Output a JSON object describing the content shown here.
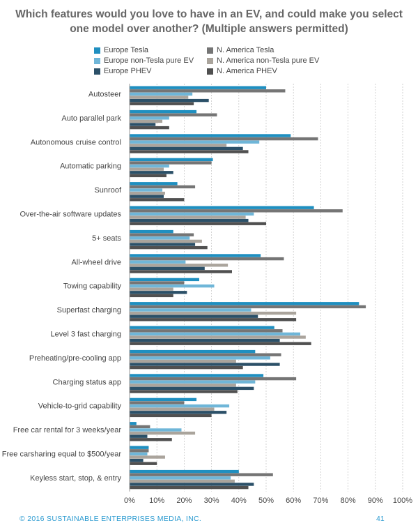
{
  "page": {
    "title_line1": "Which features would you love to have in an EV, and could make you select",
    "title_line2": "one model over another? (Multiple answers permitted)",
    "footer_left": "© 2016  SUSTAINABLE ENTERPRISES MEDIA, INC.",
    "footer_right": "41",
    "footer_color": "#2a9ad0"
  },
  "chart_data": {
    "type": "bar",
    "orientation": "horizontal",
    "title": "Which features would you love to have in an EV, and could make you select one model over another? (Multiple answers permitted)",
    "xlim": [
      0,
      100
    ],
    "x_ticks": [
      "0%",
      "10%",
      "20%",
      "30%",
      "40%",
      "50%",
      "60%",
      "70%",
      "80%",
      "90%",
      "100%"
    ],
    "grid": "vertical dashed",
    "legend_position": "top",
    "categories": [
      "Autosteer",
      "Auto parallel park",
      "Autonomous cruise control",
      "Automatic parking",
      "Sunroof",
      "Over-the-air software updates",
      "5+ seats",
      "All-wheel drive",
      "Towing capability",
      "Superfast charging",
      "Level 3 fast charging",
      "Preheating/pre-cooling app",
      "Charging status app",
      "Vehicle-to-grid capability",
      "Free car rental for 3 weeks/year",
      "Free carsharing equal to $500/year",
      "Keyless start, stop, & entry"
    ],
    "series": [
      {
        "name": "Europe Tesla",
        "color": "#1f8fc0",
        "values": [
          50,
          24.5,
          59,
          30.5,
          17.5,
          67.5,
          16,
          48,
          25.5,
          84,
          53,
          46,
          49,
          24.5,
          2.5,
          7,
          40
        ]
      },
      {
        "name": "N. America Tesla",
        "color": "#757575",
        "values": [
          57,
          32,
          69,
          30,
          24,
          78,
          23.5,
          56.5,
          20,
          86.5,
          56,
          55.5,
          61,
          20,
          7.5,
          7,
          52.5
        ]
      },
      {
        "name": "Europe non-Tesla pure EV",
        "color": "#6fb6d8",
        "values": [
          23,
          14.5,
          47.5,
          14.5,
          12,
          45.5,
          22,
          20.5,
          31,
          44.5,
          62.5,
          51.5,
          46,
          36.5,
          19,
          6.5,
          37
        ]
      },
      {
        "name": "N. America non-Tesla pure EV",
        "color": "#aaa49c",
        "values": [
          21.5,
          12,
          35.5,
          12.5,
          13,
          42.5,
          26.5,
          36,
          16,
          61,
          64.5,
          39,
          39,
          31,
          24,
          13,
          38.5
        ]
      },
      {
        "name": "Europe PHEV",
        "color": "#2b5068",
        "values": [
          29,
          9.5,
          41.5,
          16,
          12.5,
          43.5,
          24,
          27.5,
          21,
          47,
          55,
          55,
          45.5,
          35.5,
          6.5,
          5,
          45.5
        ]
      },
      {
        "name": "N. America PHEV",
        "color": "#505050",
        "values": [
          23.5,
          14.5,
          43.5,
          13.5,
          20,
          50,
          28.5,
          37.5,
          16,
          61,
          66.5,
          41.5,
          39.5,
          30,
          15.5,
          10,
          43.5
        ]
      }
    ]
  }
}
